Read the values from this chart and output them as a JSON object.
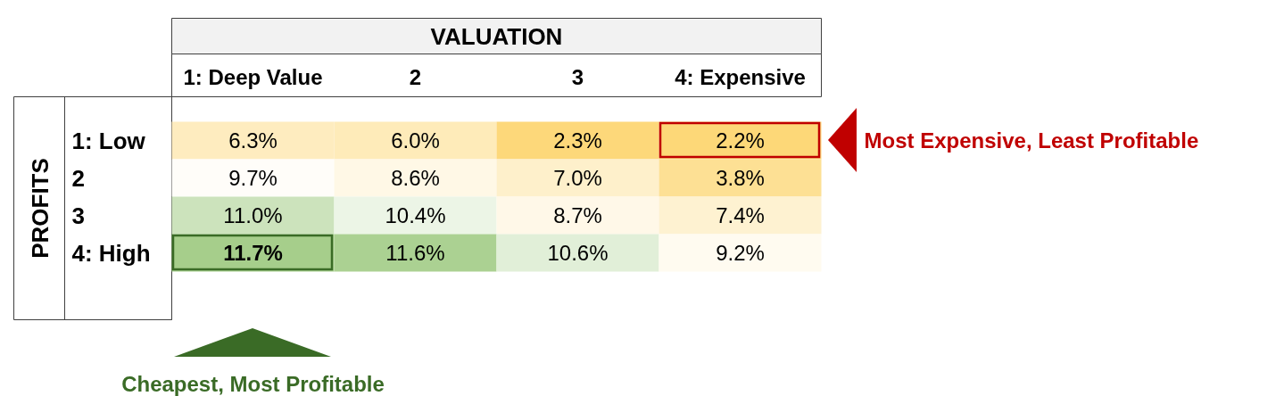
{
  "chart_data": {
    "type": "heatmap",
    "xlabel": "VALUATION",
    "ylabel": "PROFITS",
    "categories": [
      "1: Deep Value",
      "2",
      "3",
      "4: Expensive"
    ],
    "y_categories": [
      "1: Low",
      "2",
      "3",
      "4: High"
    ],
    "cells": [
      [
        6.3,
        6.0,
        2.3,
        2.2
      ],
      [
        9.7,
        8.6,
        7.0,
        3.8
      ],
      [
        11.0,
        10.4,
        8.7,
        7.4
      ],
      [
        11.7,
        11.6,
        10.6,
        9.2
      ]
    ],
    "cell_labels": [
      [
        "6.3%",
        "6.0%",
        "2.3%",
        "2.2%"
      ],
      [
        "9.7%",
        "8.6%",
        "7.0%",
        "3.8%"
      ],
      [
        "11.0%",
        "10.4%",
        "8.7%",
        "7.4%"
      ],
      [
        "11.7%",
        "11.6%",
        "10.6%",
        "9.2%"
      ]
    ],
    "annotations": [
      "Most Expensive, Least Profitable",
      "Cheapest, Most Profitable"
    ]
  }
}
